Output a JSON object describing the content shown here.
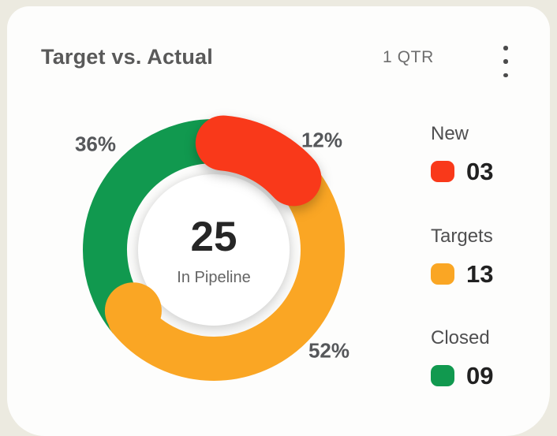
{
  "header": {
    "title": "Target vs. Actual",
    "period": "1 QTR"
  },
  "chart_data": {
    "type": "donut",
    "title": "Target vs. Actual",
    "total": 25,
    "center_value": "25",
    "center_label": "In Pipeline",
    "legend_position": "right",
    "segments": [
      {
        "name": "New",
        "value": 3,
        "display_value": "03",
        "percent": 12,
        "percent_label": "12%",
        "color": "#F9391A"
      },
      {
        "name": "Targets",
        "value": 13,
        "display_value": "13",
        "percent": 52,
        "percent_label": "52%",
        "color": "#FAA624"
      },
      {
        "name": "Closed",
        "value": 9,
        "display_value": "09",
        "percent": 36,
        "percent_label": "36%",
        "color": "#11994F"
      }
    ]
  },
  "icons": {
    "menu": "kebab-menu-icon"
  },
  "colors": {
    "page_background": "#ECEAE0",
    "card_background": "#FDFDFC",
    "title_text": "#595959",
    "period_text": "#6E6E6E",
    "percent_text": "#55575A",
    "center_value_text": "#262626",
    "center_label_text": "#646464",
    "legend_label_text": "#4F4F50",
    "legend_value_text": "#212121"
  }
}
